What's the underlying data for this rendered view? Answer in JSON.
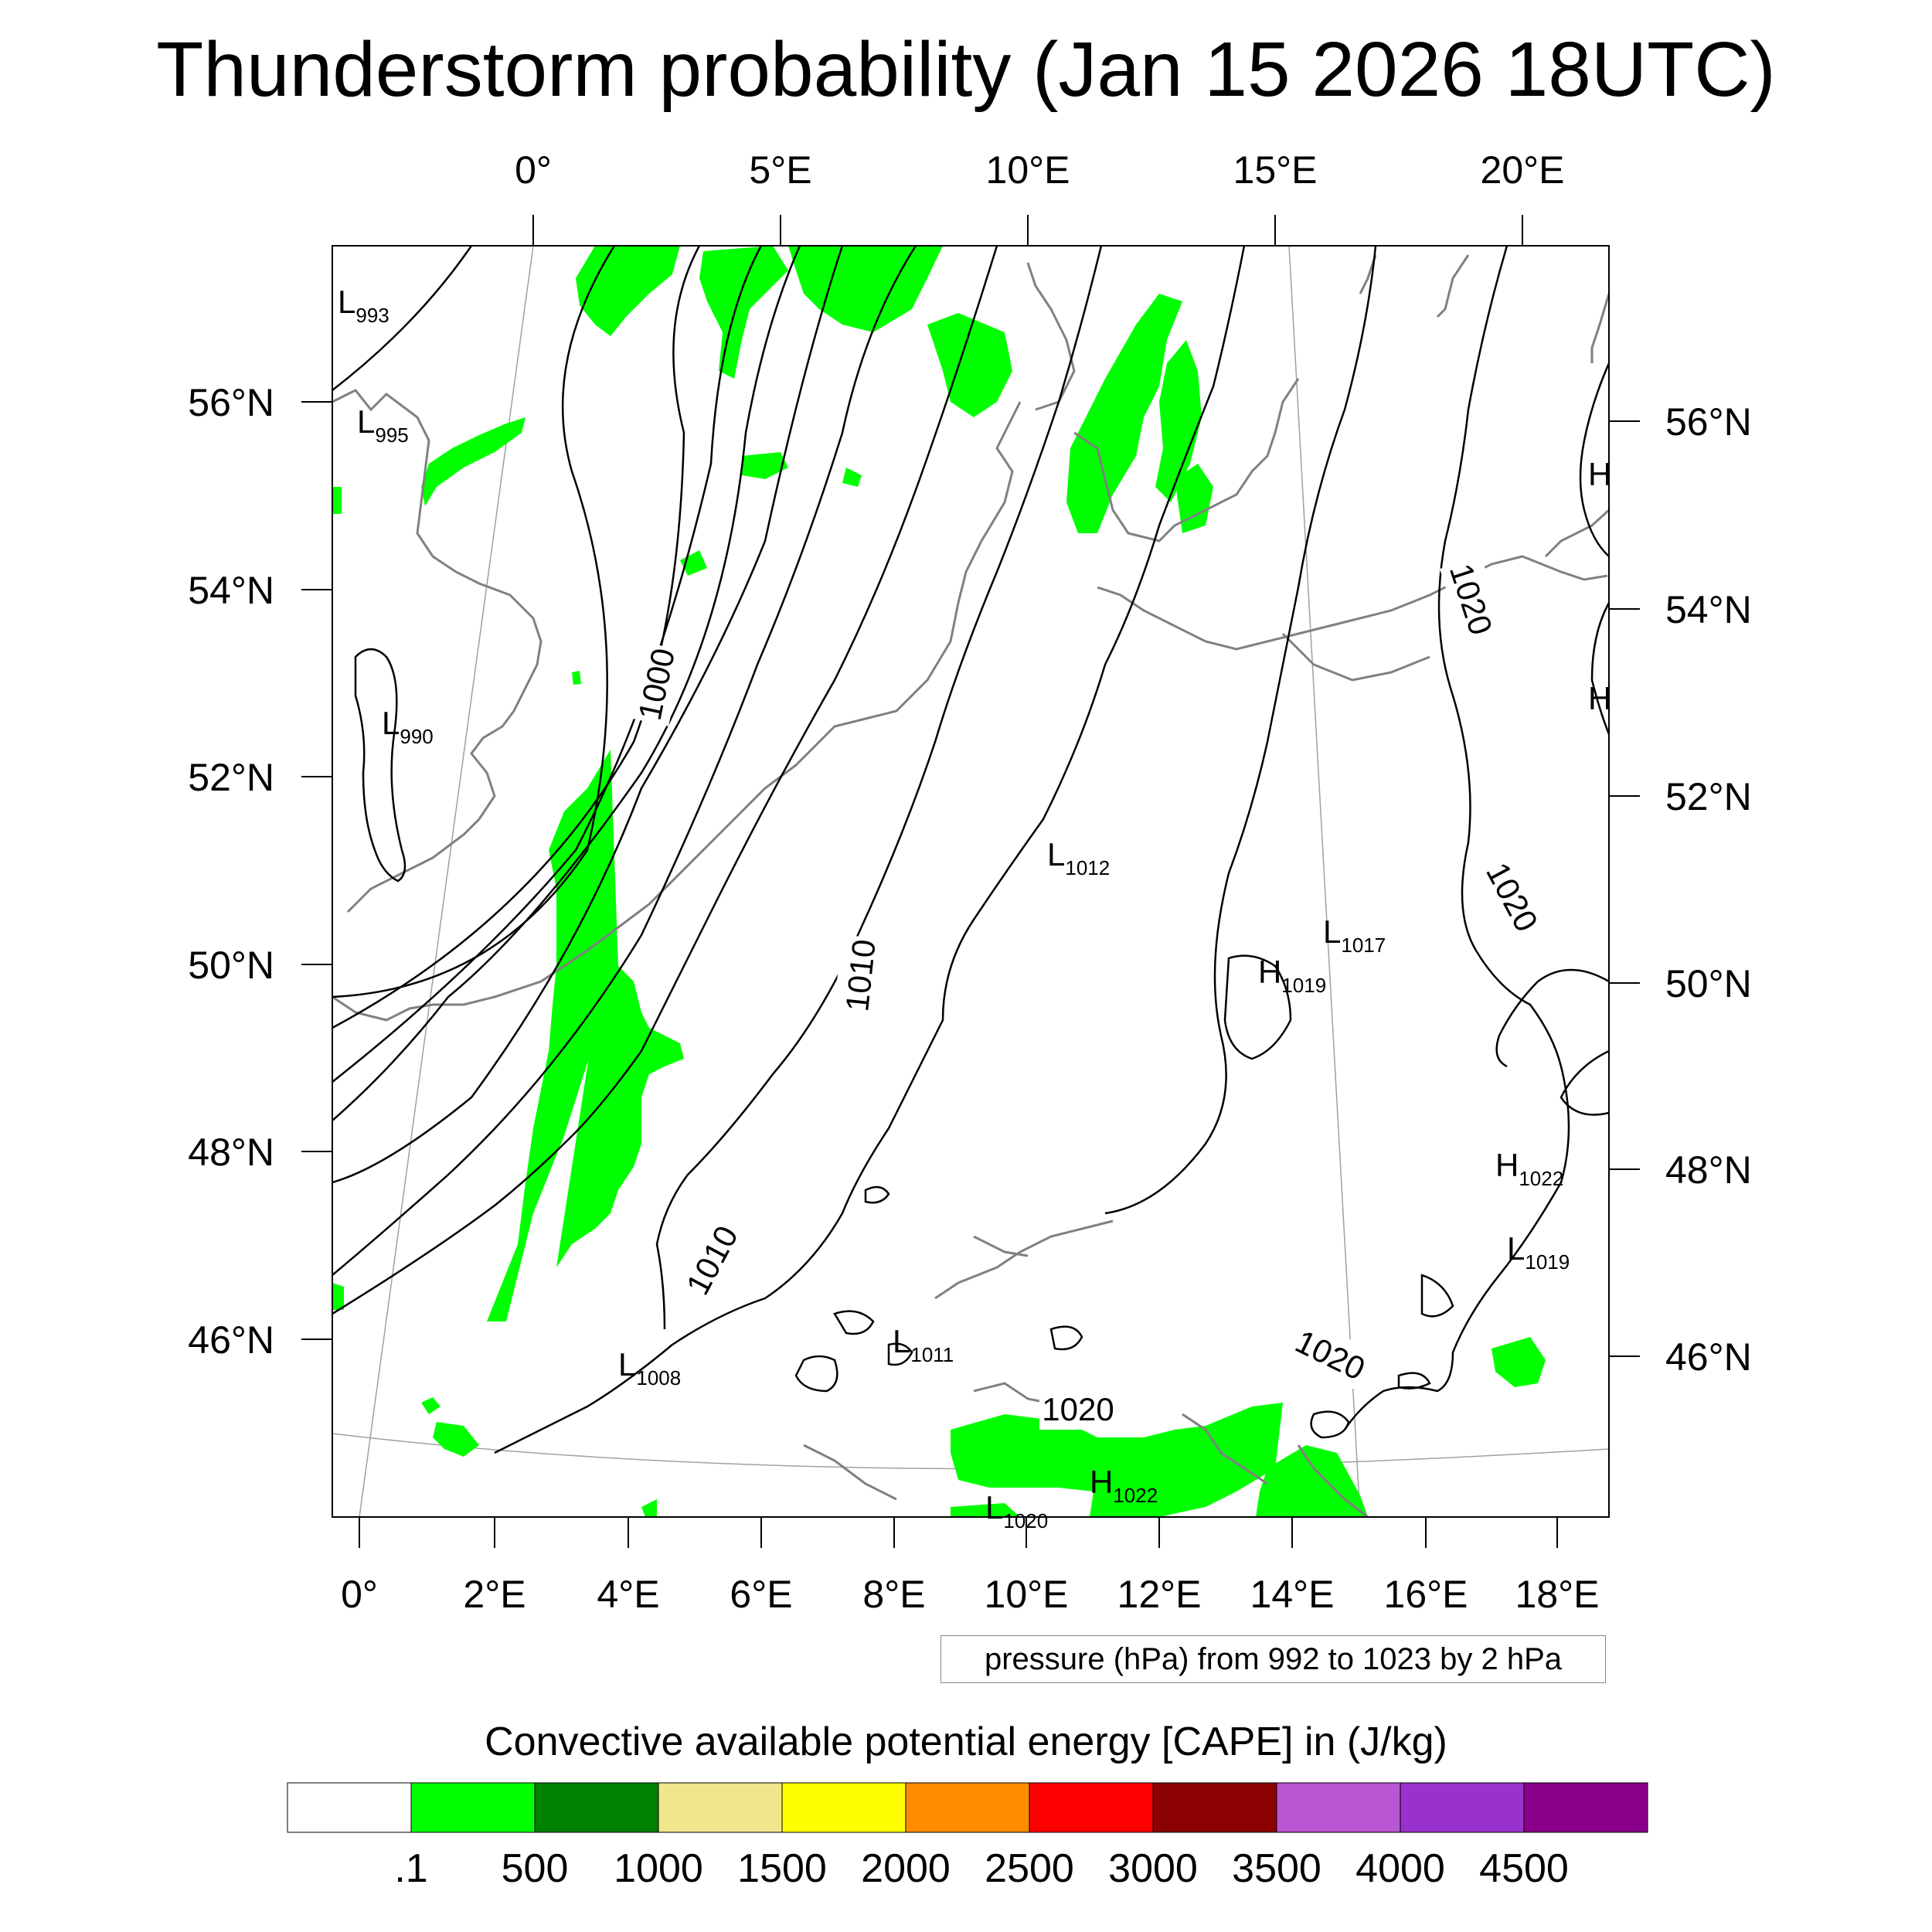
{
  "title": "Thunderstorm probability (Jan 15 2026 18UTC)",
  "map": {
    "top_lon_labels": [
      "0°",
      "5°E",
      "10°E",
      "15°E",
      "20°E"
    ],
    "bottom_lon_labels": [
      "0°",
      "2°E",
      "4°E",
      "6°E",
      "8°E",
      "10°E",
      "12°E",
      "14°E",
      "16°E",
      "18°E"
    ],
    "left_lat_labels": [
      "56°N",
      "54°N",
      "52°N",
      "50°N",
      "48°N",
      "46°N"
    ],
    "right_lat_labels": [
      "56°N",
      "54°N",
      "52°N",
      "50°N",
      "48°N",
      "46°N"
    ],
    "isobar_labels": [
      "1000",
      "1010",
      "1010",
      "1020",
      "1020",
      "1020",
      "1020"
    ],
    "pressure_centers": [
      {
        "type": "L",
        "value": "993"
      },
      {
        "type": "L",
        "value": "995"
      },
      {
        "type": "L",
        "value": "990"
      },
      {
        "type": "L",
        "value": "1012"
      },
      {
        "type": "L",
        "value": "1017"
      },
      {
        "type": "H",
        "value": "1019"
      },
      {
        "type": "H",
        "value": "1022"
      },
      {
        "type": "L",
        "value": "1019"
      },
      {
        "type": "L",
        "value": "1008"
      },
      {
        "type": "L",
        "value": "1011"
      },
      {
        "type": "H",
        "value": "1022"
      },
      {
        "type": "L",
        "value": "1020"
      }
    ],
    "edge_markers": [
      "H",
      "H"
    ],
    "info_text": "pressure (hPa) from 992 to 1023 by 2 hPa",
    "colors": {
      "cape_fill": "#00ff00",
      "isobar": "#000000",
      "coastline": "#808080",
      "graticule": "#a0a0a0"
    }
  },
  "legend": {
    "title": "Convective available potential energy [CAPE] in (J/kg)",
    "labels": [
      ".1",
      "500",
      "1000",
      "1500",
      "2000",
      "2500",
      "3000",
      "3500",
      "4000",
      "4500"
    ],
    "colors": [
      "#ffffff",
      "#00ff00",
      "#008000",
      "#f0e68c",
      "#ffff00",
      "#ff8c00",
      "#ff0000",
      "#8b0000",
      "#ba55d3",
      "#9932cc",
      "#8b008b"
    ]
  }
}
